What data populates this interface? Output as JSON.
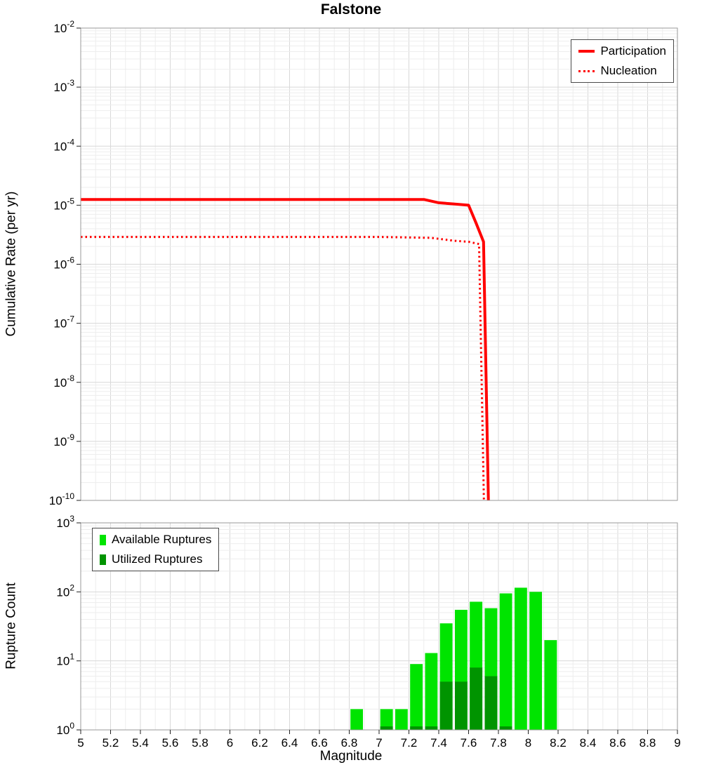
{
  "title": "Falstone",
  "chart_data": [
    {
      "type": "line",
      "title": "Falstone",
      "xlabel": "Magnitude",
      "ylabel": "Cumulative Rate (per yr)",
      "x_range": [
        5,
        9
      ],
      "y_log10_range": [
        -10,
        -2
      ],
      "x_tick_step": 0.2,
      "x_tick_labels": [
        "5",
        "5.2",
        "5.4",
        "5.6",
        "5.8",
        "6",
        "6.2",
        "6.4",
        "6.6",
        "6.8",
        "7",
        "7.2",
        "7.4",
        "7.6",
        "7.8",
        "8",
        "8.2",
        "8.4",
        "8.6",
        "8.8",
        "9"
      ],
      "y_tick_exponents": [
        -2,
        -3,
        -4,
        -5,
        -6,
        -7,
        -8,
        -9,
        -10
      ],
      "grid": true,
      "legend_position": "top-right",
      "series": [
        {
          "name": "Participation",
          "color": "#ff0000",
          "line_style": "solid",
          "line_width": 4,
          "points": [
            [
              5.0,
              1.25e-05
            ],
            [
              6.0,
              1.25e-05
            ],
            [
              7.0,
              1.25e-05
            ],
            [
              7.3,
              1.25e-05
            ],
            [
              7.4,
              1.1e-05
            ],
            [
              7.5,
              1.05e-05
            ],
            [
              7.6,
              1e-05
            ],
            [
              7.65,
              5e-06
            ],
            [
              7.7,
              2.4e-06
            ],
            [
              7.74,
              1e-11
            ]
          ]
        },
        {
          "name": "Nucleation",
          "color": "#ff0000",
          "line_style": "dotted",
          "line_width": 3,
          "points": [
            [
              5.0,
              2.9e-06
            ],
            [
              6.0,
              2.9e-06
            ],
            [
              7.0,
              2.9e-06
            ],
            [
              7.35,
              2.8e-06
            ],
            [
              7.5,
              2.5e-06
            ],
            [
              7.6,
              2.4e-06
            ],
            [
              7.67,
              2.2e-06
            ],
            [
              7.71,
              1e-11
            ]
          ]
        }
      ]
    },
    {
      "type": "bar",
      "xlabel": "Magnitude",
      "ylabel": "Rupture Count",
      "x_range": [
        5,
        9
      ],
      "y_log10_range": [
        0,
        3
      ],
      "bin_width": 0.1,
      "x_tick_step": 0.2,
      "x_tick_labels": [
        "5",
        "5.2",
        "5.4",
        "5.6",
        "5.8",
        "6",
        "6.2",
        "6.4",
        "6.6",
        "6.8",
        "7",
        "7.2",
        "7.4",
        "7.6",
        "7.8",
        "8",
        "8.2",
        "8.4",
        "8.6",
        "8.8",
        "9"
      ],
      "y_tick_exponents": [
        0,
        1,
        2,
        3
      ],
      "grid": true,
      "legend_position": "top-left",
      "series": [
        {
          "name": "Available Ruptures",
          "color": "#00e400",
          "bins": [
            {
              "mag": 6.8,
              "count": 2
            },
            {
              "mag": 7.0,
              "count": 2
            },
            {
              "mag": 7.1,
              "count": 2
            },
            {
              "mag": 7.2,
              "count": 9
            },
            {
              "mag": 7.3,
              "count": 13
            },
            {
              "mag": 7.4,
              "count": 35
            },
            {
              "mag": 7.5,
              "count": 55
            },
            {
              "mag": 7.6,
              "count": 72
            },
            {
              "mag": 7.7,
              "count": 58
            },
            {
              "mag": 7.8,
              "count": 95
            },
            {
              "mag": 7.9,
              "count": 115
            },
            {
              "mag": 8.0,
              "count": 100
            },
            {
              "mag": 8.1,
              "count": 20
            }
          ]
        },
        {
          "name": "Utilized Ruptures",
          "color": "#009400",
          "bins": [
            {
              "mag": 7.0,
              "count": 1
            },
            {
              "mag": 7.2,
              "count": 1
            },
            {
              "mag": 7.3,
              "count": 1
            },
            {
              "mag": 7.4,
              "count": 5
            },
            {
              "mag": 7.5,
              "count": 5
            },
            {
              "mag": 7.6,
              "count": 8
            },
            {
              "mag": 7.7,
              "count": 6
            },
            {
              "mag": 7.8,
              "count": 1
            }
          ]
        }
      ]
    }
  ]
}
